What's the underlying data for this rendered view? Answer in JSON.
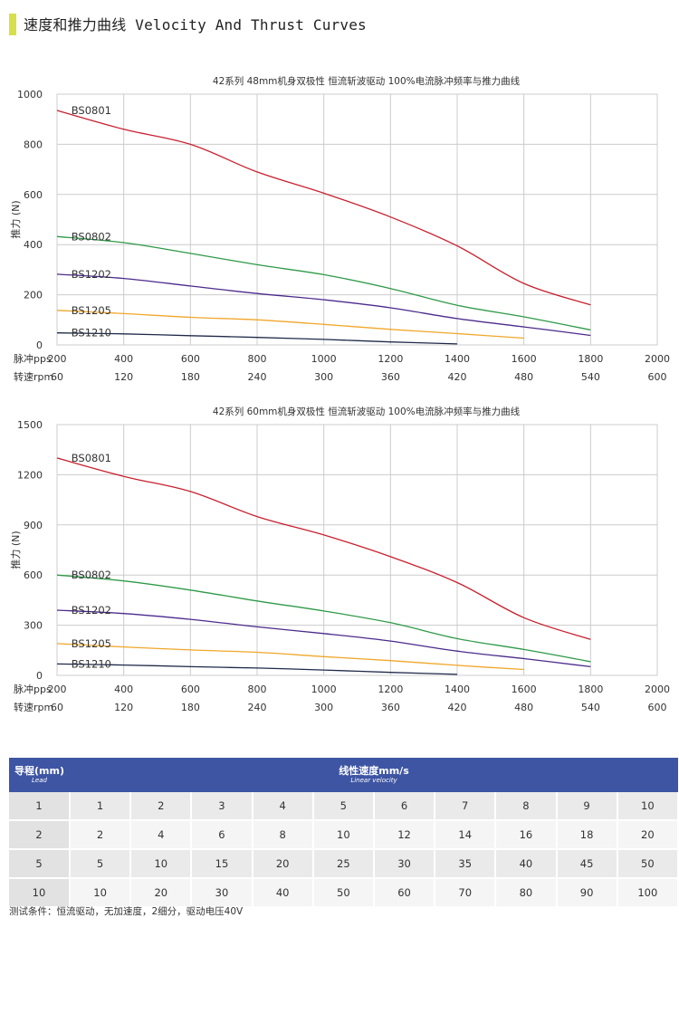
{
  "header": {
    "title": "速度和推力曲线 Velocity And Thrust Curves",
    "accent_color": "#d7df4a"
  },
  "chart_data": [
    {
      "type": "line",
      "title": "42系列 48mm机身双极性 恒流斩波驱动 100%电流脉冲频率与推力曲线",
      "ylabel": "推力 (N)",
      "xlabel_pps": "脉冲pps",
      "xlabel_rpm": "转速rpm",
      "ylim": [
        0,
        1000
      ],
      "yticks": [
        0,
        200,
        400,
        600,
        800,
        1000
      ],
      "xlim": [
        200,
        2000
      ],
      "xticks": [
        200,
        400,
        600,
        800,
        1000,
        1200,
        1400,
        1600,
        1800,
        2000
      ],
      "rpm_ticks": [
        60,
        120,
        180,
        240,
        300,
        360,
        420,
        480,
        540,
        600
      ],
      "grid": true,
      "series": [
        {
          "name": "BS0801",
          "color": "#c8202e",
          "x": [
            200,
            400,
            600,
            800,
            1000,
            1200,
            1400,
            1600,
            1800
          ],
          "y": [
            935,
            860,
            800,
            690,
            605,
            510,
            395,
            245,
            160
          ]
        },
        {
          "name": "BS0802",
          "color": "#2e9a47",
          "x": [
            200,
            400,
            600,
            800,
            1000,
            1200,
            1400,
            1600,
            1800
          ],
          "y": [
            432,
            408,
            365,
            320,
            280,
            225,
            158,
            112,
            60
          ]
        },
        {
          "name": "BS1202",
          "color": "#4b2a8c",
          "x": [
            200,
            400,
            600,
            800,
            1000,
            1200,
            1400,
            1600,
            1800
          ],
          "y": [
            282,
            265,
            235,
            205,
            180,
            148,
            105,
            72,
            38
          ]
        },
        {
          "name": "BS1205",
          "color": "#f0a72a",
          "x": [
            200,
            400,
            600,
            800,
            1000,
            1200,
            1400,
            1600
          ],
          "y": [
            138,
            125,
            110,
            100,
            82,
            62,
            45,
            27
          ]
        },
        {
          "name": "BS1210",
          "color": "#1f2a4a",
          "x": [
            200,
            400,
            600,
            800,
            1000,
            1200,
            1400
          ],
          "y": [
            48,
            44,
            37,
            30,
            22,
            12,
            4
          ]
        }
      ]
    },
    {
      "type": "line",
      "title": "42系列 60mm机身双极性 恒流斩波驱动 100%电流脉冲频率与推力曲线",
      "ylabel": "推力 (N)",
      "xlabel_pps": "脉冲pps",
      "xlabel_rpm": "转速rpm",
      "ylim": [
        0,
        1500
      ],
      "yticks": [
        0,
        300,
        600,
        900,
        1200,
        1500
      ],
      "xlim": [
        200,
        2000
      ],
      "xticks": [
        200,
        400,
        600,
        800,
        1000,
        1200,
        1400,
        1600,
        1800,
        2000
      ],
      "rpm_ticks": [
        60,
        120,
        180,
        240,
        300,
        360,
        420,
        480,
        540,
        600
      ],
      "grid": true,
      "series": [
        {
          "name": "BS0801",
          "color": "#c8202e",
          "x": [
            200,
            400,
            600,
            800,
            1000,
            1200,
            1400,
            1600,
            1800
          ],
          "y": [
            1300,
            1190,
            1100,
            950,
            840,
            710,
            555,
            345,
            215
          ]
        },
        {
          "name": "BS0802",
          "color": "#2e9a47",
          "x": [
            200,
            400,
            600,
            800,
            1000,
            1200,
            1400,
            1600,
            1800
          ],
          "y": [
            600,
            565,
            510,
            445,
            385,
            315,
            220,
            155,
            82
          ]
        },
        {
          "name": "BS1202",
          "color": "#4b2a8c",
          "x": [
            200,
            400,
            600,
            800,
            1000,
            1200,
            1400,
            1600,
            1800
          ],
          "y": [
            390,
            370,
            335,
            290,
            250,
            205,
            145,
            100,
            52
          ]
        },
        {
          "name": "BS1205",
          "color": "#f0a72a",
          "x": [
            200,
            400,
            600,
            800,
            1000,
            1200,
            1400,
            1600
          ],
          "y": [
            190,
            170,
            152,
            138,
            112,
            88,
            60,
            35
          ]
        },
        {
          "name": "BS1210",
          "color": "#1f2a4a",
          "x": [
            200,
            400,
            600,
            800,
            1000,
            1200,
            1400
          ],
          "y": [
            68,
            62,
            52,
            44,
            32,
            18,
            6
          ]
        }
      ]
    }
  ],
  "table": {
    "lead_header": "导程(mm)",
    "lead_header_en": "Lead",
    "velocity_header": "线性速度mm/s",
    "velocity_header_en": "Linear velocity",
    "header_color": "#3e55a3",
    "rows": [
      [
        "1",
        "1",
        "2",
        "3",
        "4",
        "5",
        "6",
        "7",
        "8",
        "9",
        "10"
      ],
      [
        "2",
        "2",
        "4",
        "6",
        "8",
        "10",
        "12",
        "14",
        "16",
        "18",
        "20"
      ],
      [
        "5",
        "5",
        "10",
        "15",
        "20",
        "25",
        "30",
        "35",
        "40",
        "45",
        "50"
      ],
      [
        "10",
        "10",
        "20",
        "30",
        "40",
        "50",
        "60",
        "70",
        "80",
        "90",
        "100"
      ]
    ]
  },
  "footnote": "测试条件：恒流驱动，无加速度，2细分，驱动电压40V"
}
